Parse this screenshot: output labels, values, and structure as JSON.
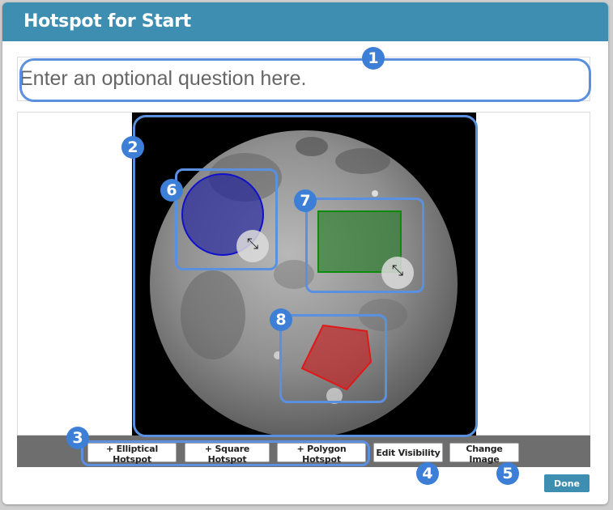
{
  "dialog": {
    "title": "Hotspot for Start",
    "question_placeholder": "Enter an optional question here."
  },
  "toolbar": {
    "elliptical_label": "+ Elliptical Hotspot",
    "square_label": "+ Square Hotspot",
    "polygon_label": "+ Polygon Hotspot",
    "visibility_label": "Edit Visibility",
    "change_image_label": "Change Image"
  },
  "footer": {
    "done_label": "Done"
  },
  "callouts": [
    "1",
    "2",
    "3",
    "4",
    "5",
    "6",
    "7",
    "8"
  ],
  "hotspots": {
    "ellipse_color": "#1a1aa8",
    "square_color": "#1f8a1f",
    "polygon_color": "#d41b1b"
  },
  "icons": {
    "resize": "resize-diagonal-icon"
  },
  "colors": {
    "header": "#3d8eb0",
    "callout": "#3d7fd6",
    "toolbar_bg": "#6e6e6e"
  }
}
